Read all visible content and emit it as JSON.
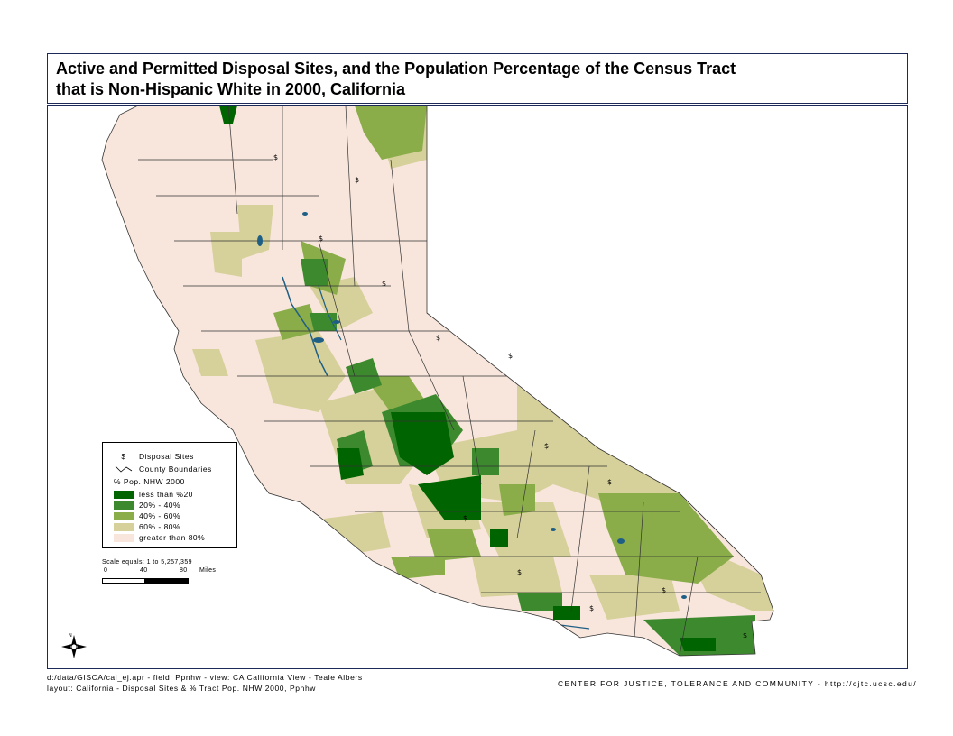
{
  "title": {
    "line1": "Active and Permitted Disposal Sites, and the Population Percentage of the Census Tract",
    "line2": "that is Non-Hispanic White in 2000, California"
  },
  "legend": {
    "disposal_sites_label": "Disposal Sites",
    "county_boundaries_label": "County Boundaries",
    "classes_title": "% Pop. NHW 2000",
    "classes": [
      {
        "label": "less than %20",
        "color": "#006400"
      },
      {
        "label": "20% - 40%",
        "color": "#3d8a2e"
      },
      {
        "label": "40% - 60%",
        "color": "#8aad4a"
      },
      {
        "label": "60% - 80%",
        "color": "#d6d09a"
      },
      {
        "label": "greater than 80%",
        "color": "#f8e6dc"
      }
    ]
  },
  "scale": {
    "text": "Scale equals: 1 to 5,257,359",
    "tick0": "0",
    "tick1": "40",
    "tick2": "80",
    "unit": "Miles"
  },
  "footer": {
    "line1": "d:/data/GISCA/cal_ej.apr - field: Ppnhw - view: CA California View - Teale Albers",
    "line2": "layout: California - Disposal Sites & % Tract Pop. NHW 2000, Ppnhw",
    "credit": "CENTER FOR JUSTICE, TOLERANCE AND COMMUNITY - http://cjtc.ucsc.edu/"
  },
  "colors": {
    "water": "#1f5f85",
    "boundary": "#333333"
  }
}
